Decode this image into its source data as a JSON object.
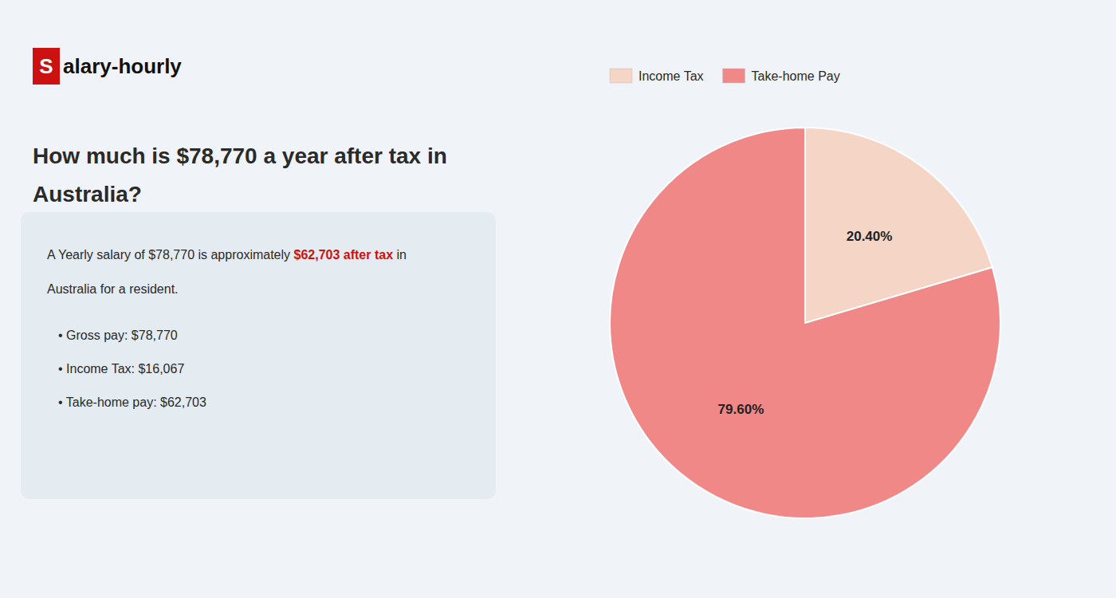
{
  "chart_data": {
    "type": "pie",
    "title": [
      "How much is $78,770 a year after tax in",
      "Australia?"
    ],
    "categories": [
      "Income Tax",
      "Take-home Pay"
    ],
    "values": [
      20.4,
      79.6
    ],
    "value_labels": [
      "20.40%",
      "79.60%"
    ],
    "colors": [
      "#f5d5c5",
      "#f08888"
    ],
    "data_labels": true,
    "legend": "top",
    "annotations": [
      {
        "text": "S",
        "color": "#cc1111"
      },
      {
        "text": "alary-hourly"
      },
      {
        "text": "A Yearly salary of $78,770 is approximately "
      },
      {
        "text": "$62,703 after tax",
        "color": "#cc1111"
      },
      {
        "text": " in"
      },
      {
        "text": "Australia for a resident."
      },
      {
        "text": "• Gross pay: $78,770"
      },
      {
        "text": "• Income Tax: $16,067"
      },
      {
        "text": "• Take-home pay: $62,703"
      }
    ]
  }
}
